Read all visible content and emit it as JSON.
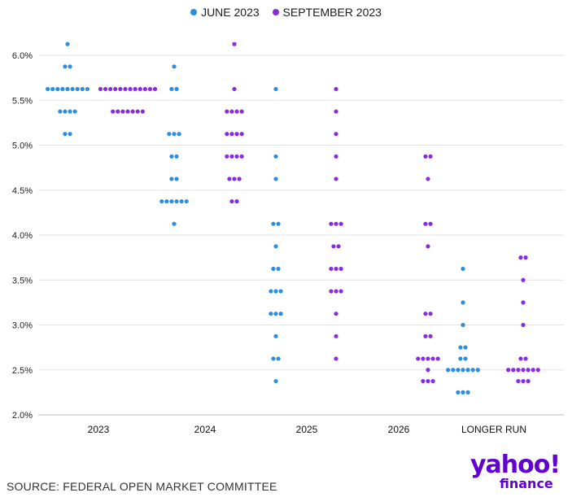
{
  "chart_data": {
    "type": "scatter",
    "title": "",
    "xlabel": "",
    "ylabel": "",
    "categories": [
      "2023",
      "2024",
      "2025",
      "2026",
      "LONGER RUN"
    ],
    "y_ticks": [
      "2.0%",
      "2.5%",
      "3.0%",
      "3.5%",
      "4.0%",
      "4.5%",
      "5.0%",
      "5.5%",
      "6.0%"
    ],
    "ylim": [
      2.0,
      6.2
    ],
    "grid": true,
    "legend_position": "top-center",
    "series": [
      {
        "name": "JUNE 2023",
        "color": "#2a8fe0",
        "points": [
          {
            "category": "2023",
            "y": 6.125,
            "count": 1
          },
          {
            "category": "2023",
            "y": 5.875,
            "count": 2
          },
          {
            "category": "2023",
            "y": 5.625,
            "count": 9
          },
          {
            "category": "2023",
            "y": 5.375,
            "count": 4
          },
          {
            "category": "2023",
            "y": 5.125,
            "count": 2
          },
          {
            "category": "2024",
            "y": 5.875,
            "count": 1
          },
          {
            "category": "2024",
            "y": 5.625,
            "count": 2
          },
          {
            "category": "2024",
            "y": 5.125,
            "count": 3
          },
          {
            "category": "2024",
            "y": 4.875,
            "count": 2
          },
          {
            "category": "2024",
            "y": 4.625,
            "count": 2
          },
          {
            "category": "2024",
            "y": 4.375,
            "count": 6
          },
          {
            "category": "2024",
            "y": 4.125,
            "count": 1
          },
          {
            "category": "2025",
            "y": 5.625,
            "count": 1
          },
          {
            "category": "2025",
            "y": 4.875,
            "count": 1
          },
          {
            "category": "2025",
            "y": 4.625,
            "count": 1
          },
          {
            "category": "2025",
            "y": 4.125,
            "count": 2
          },
          {
            "category": "2025",
            "y": 3.875,
            "count": 1
          },
          {
            "category": "2025",
            "y": 3.625,
            "count": 2
          },
          {
            "category": "2025",
            "y": 3.375,
            "count": 3
          },
          {
            "category": "2025",
            "y": 3.125,
            "count": 3
          },
          {
            "category": "2025",
            "y": 2.875,
            "count": 1
          },
          {
            "category": "2025",
            "y": 2.625,
            "count": 2
          },
          {
            "category": "2025",
            "y": 2.375,
            "count": 1
          },
          {
            "category": "LONGER RUN",
            "y": 3.625,
            "count": 1
          },
          {
            "category": "LONGER RUN",
            "y": 3.25,
            "count": 1
          },
          {
            "category": "LONGER RUN",
            "y": 3.0,
            "count": 1
          },
          {
            "category": "LONGER RUN",
            "y": 2.75,
            "count": 2
          },
          {
            "category": "LONGER RUN",
            "y": 2.625,
            "count": 2
          },
          {
            "category": "LONGER RUN",
            "y": 2.5,
            "count": 7
          },
          {
            "category": "LONGER RUN",
            "y": 2.25,
            "count": 3
          }
        ]
      },
      {
        "name": "SEPTEMBER 2023",
        "color": "#8a2be2",
        "points": [
          {
            "category": "2023",
            "y": 5.625,
            "count": 12
          },
          {
            "category": "2023",
            "y": 5.375,
            "count": 7
          },
          {
            "category": "2024",
            "y": 6.125,
            "count": 1
          },
          {
            "category": "2024",
            "y": 5.625,
            "count": 1
          },
          {
            "category": "2024",
            "y": 5.375,
            "count": 4
          },
          {
            "category": "2024",
            "y": 5.125,
            "count": 4
          },
          {
            "category": "2024",
            "y": 4.875,
            "count": 4
          },
          {
            "category": "2024",
            "y": 4.625,
            "count": 3
          },
          {
            "category": "2024",
            "y": 4.375,
            "count": 2
          },
          {
            "category": "2025",
            "y": 5.625,
            "count": 1
          },
          {
            "category": "2025",
            "y": 5.375,
            "count": 1
          },
          {
            "category": "2025",
            "y": 5.125,
            "count": 1
          },
          {
            "category": "2025",
            "y": 4.875,
            "count": 1
          },
          {
            "category": "2025",
            "y": 4.625,
            "count": 1
          },
          {
            "category": "2025",
            "y": 4.125,
            "count": 3
          },
          {
            "category": "2025",
            "y": 3.875,
            "count": 2
          },
          {
            "category": "2025",
            "y": 3.625,
            "count": 3
          },
          {
            "category": "2025",
            "y": 3.375,
            "count": 3
          },
          {
            "category": "2025",
            "y": 3.125,
            "count": 1
          },
          {
            "category": "2025",
            "y": 2.875,
            "count": 1
          },
          {
            "category": "2025",
            "y": 2.625,
            "count": 1
          },
          {
            "category": "2026",
            "y": 4.875,
            "count": 2
          },
          {
            "category": "2026",
            "y": 4.625,
            "count": 1
          },
          {
            "category": "2026",
            "y": 4.125,
            "count": 2
          },
          {
            "category": "2026",
            "y": 3.875,
            "count": 1
          },
          {
            "category": "2026",
            "y": 3.125,
            "count": 2
          },
          {
            "category": "2026",
            "y": 2.875,
            "count": 2
          },
          {
            "category": "2026",
            "y": 2.625,
            "count": 5
          },
          {
            "category": "2026",
            "y": 2.5,
            "count": 1
          },
          {
            "category": "2026",
            "y": 2.375,
            "count": 3
          },
          {
            "category": "LONGER RUN",
            "y": 3.75,
            "count": 2
          },
          {
            "category": "LONGER RUN",
            "y": 3.5,
            "count": 1
          },
          {
            "category": "LONGER RUN",
            "y": 3.25,
            "count": 1
          },
          {
            "category": "LONGER RUN",
            "y": 3.0,
            "count": 1
          },
          {
            "category": "LONGER RUN",
            "y": 2.625,
            "count": 2
          },
          {
            "category": "LONGER RUN",
            "y": 2.5,
            "count": 7
          },
          {
            "category": "LONGER RUN",
            "y": 2.375,
            "count": 3
          }
        ]
      }
    ]
  },
  "legend": {
    "items": [
      {
        "label": "JUNE 2023",
        "color": "#2a8fe0"
      },
      {
        "label": "SEPTEMBER 2023",
        "color": "#8a2be2"
      }
    ]
  },
  "footer": {
    "source": "SOURCE: FEDERAL OPEN MARKET COMMITTEE",
    "logo_main": "yahoo!",
    "logo_sub": "finance",
    "logo_color": "#6001d2"
  }
}
